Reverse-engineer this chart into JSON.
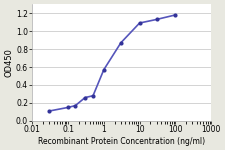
{
  "x": [
    0.03,
    0.1,
    0.16,
    0.3,
    0.5,
    1,
    3,
    10,
    30,
    100
  ],
  "y": [
    0.11,
    0.15,
    0.17,
    0.26,
    0.28,
    0.57,
    0.87,
    1.09,
    1.13,
    1.18
  ],
  "line_color": "#5555bb",
  "marker_color": "#333399",
  "marker_size": 3.0,
  "xlabel": "Recombinant Protein Concentration (ng/ml)",
  "ylabel": "OD450",
  "xlim": [
    0.01,
    1000
  ],
  "ylim": [
    0.0,
    1.3
  ],
  "yticks": [
    0.0,
    0.2,
    0.4,
    0.6,
    0.8,
    1.0,
    1.2
  ],
  "xtick_labels": [
    "0.01",
    "0.1",
    "1",
    "10",
    "100",
    "1000"
  ],
  "xtick_vals": [
    0.01,
    0.1,
    1,
    10,
    100,
    1000
  ],
  "xlabel_fontsize": 5.5,
  "ylabel_fontsize": 6.0,
  "tick_fontsize": 5.5,
  "figure_bg_color": "#e8e8e0",
  "plot_bg_color": "#ffffff",
  "grid_color": "#cccccc",
  "grid_lw": 0.6,
  "spine_color": "#aaaaaa",
  "line_width": 1.2
}
